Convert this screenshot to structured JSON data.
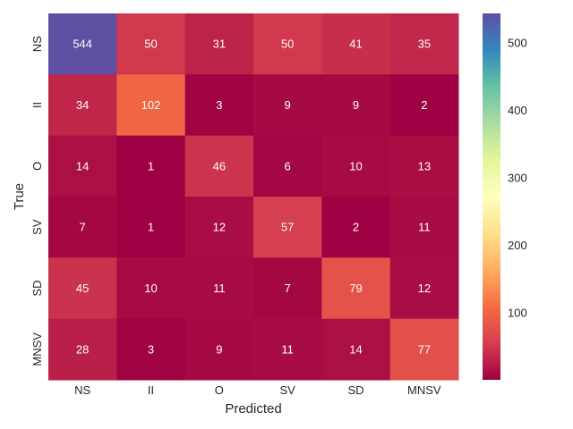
{
  "chart_data": {
    "type": "heatmap",
    "xlabel": "Predicted",
    "ylabel": "True",
    "x_categories": [
      "NS",
      "II",
      "O",
      "SV",
      "SD",
      "MNSV"
    ],
    "y_categories": [
      "NS",
      "II",
      "O",
      "SV",
      "SD",
      "MNSV"
    ],
    "values": [
      [
        544,
        50,
        31,
        50,
        41,
        35
      ],
      [
        34,
        102,
        3,
        9,
        9,
        2
      ],
      [
        14,
        1,
        46,
        6,
        10,
        13
      ],
      [
        7,
        1,
        12,
        57,
        2,
        11
      ],
      [
        45,
        10,
        11,
        7,
        79,
        12
      ],
      [
        28,
        3,
        9,
        11,
        14,
        77
      ]
    ],
    "colormap": "Spectral",
    "colorbar": {
      "range": [
        1,
        544
      ],
      "ticks": [
        100,
        200,
        300,
        400,
        500
      ]
    },
    "grid": false
  }
}
